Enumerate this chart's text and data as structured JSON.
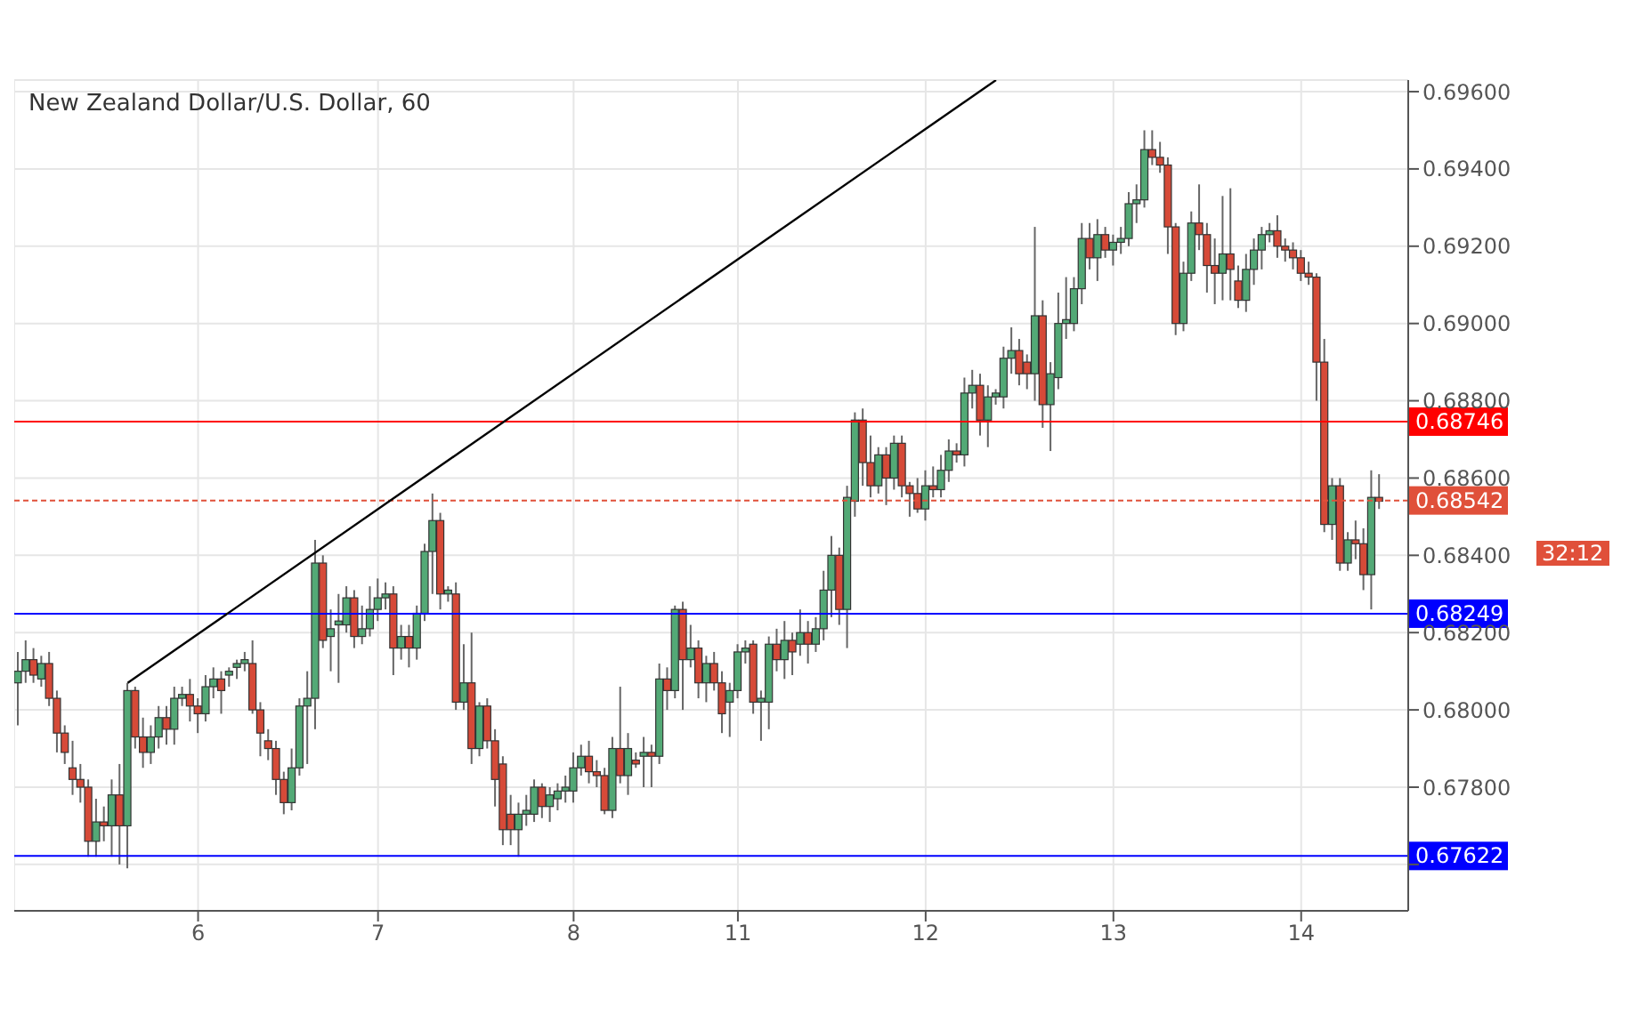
{
  "chart_data": {
    "type": "candlestick",
    "title": "New Zealand Dollar/U.S. Dollar, 60",
    "categories": [
      null,
      null,
      null,
      null,
      null,
      null,
      null,
      null,
      null,
      null,
      null,
      null,
      null,
      null,
      null,
      null,
      null,
      null,
      null,
      null,
      null,
      null,
      null,
      "6",
      null,
      null,
      null,
      null,
      null,
      null,
      null,
      null,
      null,
      null,
      null,
      null,
      null,
      null,
      null,
      null,
      null,
      null,
      null,
      null,
      null,
      null,
      "7",
      null,
      null,
      null,
      null,
      null,
      null,
      null,
      null,
      null,
      null,
      null,
      null,
      null,
      null,
      null,
      null,
      null,
      null,
      null,
      null,
      null,
      null,
      null,
      null,
      "8",
      null,
      null,
      null,
      null,
      null,
      null,
      null,
      null,
      null,
      null,
      null,
      null,
      null,
      null,
      null,
      null,
      null,
      null,
      null,
      null,
      "11",
      null,
      null,
      null,
      null,
      null,
      null,
      null,
      null,
      null,
      null,
      null,
      null,
      null,
      null,
      null,
      null,
      null,
      null,
      null,
      null,
      null,
      null,
      null,
      "12",
      null,
      null,
      null,
      null,
      null,
      null,
      null,
      null,
      null,
      null,
      null,
      null,
      null,
      null,
      null,
      null,
      null,
      null,
      null,
      null,
      null,
      null,
      null,
      "13",
      null,
      null,
      null,
      null,
      null,
      null,
      null,
      null,
      null,
      null,
      null,
      null,
      null,
      null,
      null,
      null,
      null,
      null,
      null,
      null,
      null,
      null,
      null,
      "14",
      null,
      null,
      null,
      null,
      null,
      null,
      null,
      null,
      null,
      null
    ],
    "ohlc": [
      [
        0.6807,
        0.6815,
        0.6796,
        0.681
      ],
      [
        0.681,
        0.6818,
        0.6807,
        0.6813
      ],
      [
        0.6813,
        0.6816,
        0.6807,
        0.6809
      ],
      [
        0.6808,
        0.6814,
        0.6806,
        0.6812
      ],
      [
        0.6812,
        0.6815,
        0.6801,
        0.6803
      ],
      [
        0.6803,
        0.6805,
        0.6789,
        0.6794
      ],
      [
        0.6794,
        0.6796,
        0.6786,
        0.6789
      ],
      [
        0.6785,
        0.6792,
        0.6778,
        0.6782
      ],
      [
        0.6782,
        0.6786,
        0.6776,
        0.678
      ],
      [
        0.678,
        0.6782,
        0.6762,
        0.6766
      ],
      [
        0.6766,
        0.6777,
        0.6762,
        0.6771
      ],
      [
        0.6771,
        0.6775,
        0.6766,
        0.677
      ],
      [
        0.677,
        0.6782,
        0.6762,
        0.6778
      ],
      [
        0.6778,
        0.6786,
        0.676,
        0.677
      ],
      [
        0.677,
        0.6807,
        0.6759,
        0.6805
      ],
      [
        0.6805,
        0.6806,
        0.679,
        0.6793
      ],
      [
        0.6793,
        0.6798,
        0.6785,
        0.6789
      ],
      [
        0.6789,
        0.6796,
        0.6786,
        0.6793
      ],
      [
        0.6793,
        0.6801,
        0.679,
        0.6798
      ],
      [
        0.6798,
        0.6801,
        0.6791,
        0.6795
      ],
      [
        0.6795,
        0.6806,
        0.6791,
        0.6803
      ],
      [
        0.6803,
        0.6806,
        0.6801,
        0.6804
      ],
      [
        0.6804,
        0.6808,
        0.6797,
        0.6801
      ],
      [
        0.6801,
        0.6803,
        0.6794,
        0.6799
      ],
      [
        0.6799,
        0.6809,
        0.6797,
        0.6806
      ],
      [
        0.6806,
        0.6811,
        0.6803,
        0.6808
      ],
      [
        0.6808,
        0.681,
        0.6799,
        0.6805
      ],
      [
        0.6809,
        0.6811,
        0.6806,
        0.681
      ],
      [
        0.6811,
        0.6813,
        0.6808,
        0.6812
      ],
      [
        0.6812,
        0.6815,
        0.681,
        0.6813
      ],
      [
        0.6812,
        0.6818,
        0.6799,
        0.68
      ],
      [
        0.68,
        0.6802,
        0.6788,
        0.6794
      ],
      [
        0.6792,
        0.6795,
        0.6787,
        0.679
      ],
      [
        0.679,
        0.6792,
        0.6778,
        0.6782
      ],
      [
        0.6782,
        0.6784,
        0.6773,
        0.6776
      ],
      [
        0.6776,
        0.679,
        0.6774,
        0.6785
      ],
      [
        0.6785,
        0.6803,
        0.6783,
        0.6801
      ],
      [
        0.6801,
        0.681,
        0.6786,
        0.6803
      ],
      [
        0.6803,
        0.6844,
        0.6795,
        0.6838
      ],
      [
        0.6838,
        0.684,
        0.6816,
        0.6818
      ],
      [
        0.6819,
        0.6826,
        0.681,
        0.6821
      ],
      [
        0.6822,
        0.683,
        0.6807,
        0.6823
      ],
      [
        0.6822,
        0.6832,
        0.682,
        0.6829
      ],
      [
        0.6829,
        0.6831,
        0.6816,
        0.6819
      ],
      [
        0.6819,
        0.6827,
        0.6817,
        0.6821
      ],
      [
        0.6821,
        0.6832,
        0.6819,
        0.6826
      ],
      [
        0.6826,
        0.6834,
        0.6823,
        0.6829
      ],
      [
        0.6829,
        0.6833,
        0.6826,
        0.683
      ],
      [
        0.683,
        0.6832,
        0.6809,
        0.6816
      ],
      [
        0.6816,
        0.6822,
        0.6813,
        0.6819
      ],
      [
        0.6819,
        0.6822,
        0.6811,
        0.6816
      ],
      [
        0.6816,
        0.6827,
        0.6813,
        0.6825
      ],
      [
        0.6825,
        0.6843,
        0.6823,
        0.6841
      ],
      [
        0.6841,
        0.6856,
        0.683,
        0.6849
      ],
      [
        0.6849,
        0.6851,
        0.6826,
        0.683
      ],
      [
        0.683,
        0.6832,
        0.6828,
        0.6831
      ],
      [
        0.683,
        0.6833,
        0.68,
        0.6802
      ],
      [
        0.6802,
        0.6817,
        0.68,
        0.6807
      ],
      [
        0.6807,
        0.682,
        0.6786,
        0.679
      ],
      [
        0.679,
        0.6802,
        0.6788,
        0.6801
      ],
      [
        0.6801,
        0.6803,
        0.679,
        0.6792
      ],
      [
        0.6792,
        0.6795,
        0.6775,
        0.6782
      ],
      [
        0.6786,
        0.6788,
        0.6765,
        0.6769
      ],
      [
        0.6773,
        0.6778,
        0.6765,
        0.6769
      ],
      [
        0.6769,
        0.6776,
        0.6762,
        0.6773
      ],
      [
        0.6773,
        0.6778,
        0.677,
        0.6774
      ],
      [
        0.6773,
        0.6782,
        0.6771,
        0.678
      ],
      [
        0.678,
        0.6781,
        0.6772,
        0.6775
      ],
      [
        0.6775,
        0.678,
        0.6771,
        0.6778
      ],
      [
        0.6777,
        0.6781,
        0.6774,
        0.6779
      ],
      [
        0.6779,
        0.6783,
        0.6776,
        0.678
      ],
      [
        0.6779,
        0.6789,
        0.6776,
        0.6785
      ],
      [
        0.6785,
        0.6791,
        0.6783,
        0.6788
      ],
      [
        0.6788,
        0.6792,
        0.6781,
        0.6784
      ],
      [
        0.6784,
        0.6787,
        0.678,
        0.6783
      ],
      [
        0.6783,
        0.6785,
        0.6773,
        0.6774
      ],
      [
        0.6774,
        0.6793,
        0.6772,
        0.679
      ],
      [
        0.679,
        0.6806,
        0.6781,
        0.6783
      ],
      [
        0.6783,
        0.6794,
        0.6778,
        0.679
      ],
      [
        0.6787,
        0.6789,
        0.6785,
        0.6786
      ],
      [
        0.6788,
        0.6793,
        0.678,
        0.6789
      ],
      [
        0.6789,
        0.6791,
        0.678,
        0.6788
      ],
      [
        0.6788,
        0.6812,
        0.6786,
        0.6808
      ],
      [
        0.6808,
        0.6811,
        0.68,
        0.6805
      ],
      [
        0.6805,
        0.6827,
        0.6803,
        0.6826
      ],
      [
        0.6826,
        0.6828,
        0.68,
        0.6813
      ],
      [
        0.6813,
        0.6822,
        0.6811,
        0.6816
      ],
      [
        0.6816,
        0.6818,
        0.6803,
        0.6807
      ],
      [
        0.6807,
        0.6814,
        0.6802,
        0.6812
      ],
      [
        0.6812,
        0.6815,
        0.6805,
        0.6807
      ],
      [
        0.6807,
        0.681,
        0.6794,
        0.6799
      ],
      [
        0.6802,
        0.6807,
        0.6793,
        0.6805
      ],
      [
        0.6805,
        0.6817,
        0.6803,
        0.6815
      ],
      [
        0.6815,
        0.6818,
        0.6812,
        0.6816
      ],
      [
        0.6817,
        0.6818,
        0.6799,
        0.6802
      ],
      [
        0.6802,
        0.6805,
        0.6792,
        0.6803
      ],
      [
        0.6802,
        0.6819,
        0.6795,
        0.6817
      ],
      [
        0.6817,
        0.6821,
        0.681,
        0.6813
      ],
      [
        0.6813,
        0.6823,
        0.6808,
        0.6818
      ],
      [
        0.6818,
        0.682,
        0.6809,
        0.6815
      ],
      [
        0.6817,
        0.6826,
        0.6814,
        0.682
      ],
      [
        0.682,
        0.6823,
        0.6812,
        0.6817
      ],
      [
        0.6817,
        0.6824,
        0.6815,
        0.6821
      ],
      [
        0.6821,
        0.6836,
        0.6818,
        0.6831
      ],
      [
        0.6831,
        0.6845,
        0.6824,
        0.684
      ],
      [
        0.684,
        0.6842,
        0.6822,
        0.6826
      ],
      [
        0.6826,
        0.6858,
        0.6816,
        0.6855
      ],
      [
        0.6854,
        0.6877,
        0.685,
        0.6875
      ],
      [
        0.6875,
        0.6878,
        0.6858,
        0.6864
      ],
      [
        0.6864,
        0.6871,
        0.6855,
        0.6858
      ],
      [
        0.6858,
        0.6868,
        0.6856,
        0.6866
      ],
      [
        0.6866,
        0.6868,
        0.6853,
        0.686
      ],
      [
        0.686,
        0.6871,
        0.6857,
        0.6869
      ],
      [
        0.6869,
        0.6871,
        0.6855,
        0.6858
      ],
      [
        0.6858,
        0.6859,
        0.685,
        0.6856
      ],
      [
        0.6856,
        0.686,
        0.6851,
        0.6852
      ],
      [
        0.6852,
        0.6862,
        0.6849,
        0.6858
      ],
      [
        0.6858,
        0.6863,
        0.6855,
        0.6857
      ],
      [
        0.6857,
        0.6866,
        0.6855,
        0.6862
      ],
      [
        0.6862,
        0.687,
        0.6859,
        0.6867
      ],
      [
        0.6867,
        0.6869,
        0.6864,
        0.6866
      ],
      [
        0.6866,
        0.6886,
        0.6863,
        0.6882
      ],
      [
        0.6882,
        0.6888,
        0.6878,
        0.6884
      ],
      [
        0.6884,
        0.6887,
        0.6871,
        0.6875
      ],
      [
        0.6875,
        0.6884,
        0.6868,
        0.6881
      ],
      [
        0.6881,
        0.6883,
        0.6879,
        0.6882
      ],
      [
        0.6881,
        0.6894,
        0.6878,
        0.6891
      ],
      [
        0.6891,
        0.6899,
        0.6887,
        0.6893
      ],
      [
        0.6893,
        0.6896,
        0.6884,
        0.6887
      ],
      [
        0.689,
        0.6892,
        0.6883,
        0.6887
      ],
      [
        0.6887,
        0.6925,
        0.688,
        0.6902
      ],
      [
        0.6902,
        0.6906,
        0.6873,
        0.6879
      ],
      [
        0.6879,
        0.689,
        0.6867,
        0.6887
      ],
      [
        0.6886,
        0.6908,
        0.6883,
        0.69
      ],
      [
        0.69,
        0.6912,
        0.6896,
        0.6901
      ],
      [
        0.69,
        0.6912,
        0.6898,
        0.6909
      ],
      [
        0.6909,
        0.6926,
        0.6905,
        0.6922
      ],
      [
        0.6922,
        0.6926,
        0.6914,
        0.6917
      ],
      [
        0.6917,
        0.6927,
        0.6911,
        0.6923
      ],
      [
        0.6923,
        0.6925,
        0.6917,
        0.6919
      ],
      [
        0.6919,
        0.6923,
        0.6915,
        0.6921
      ],
      [
        0.6921,
        0.6925,
        0.6918,
        0.6922
      ],
      [
        0.6922,
        0.6934,
        0.692,
        0.6931
      ],
      [
        0.6931,
        0.6936,
        0.6926,
        0.6932
      ],
      [
        0.6932,
        0.695,
        0.693,
        0.6945
      ],
      [
        0.6945,
        0.695,
        0.6941,
        0.6943
      ],
      [
        0.6943,
        0.6947,
        0.6939,
        0.6941
      ],
      [
        0.6941,
        0.6943,
        0.6918,
        0.6925
      ],
      [
        0.6925,
        0.6926,
        0.6897,
        0.69
      ],
      [
        0.69,
        0.6916,
        0.6898,
        0.6913
      ],
      [
        0.6913,
        0.6929,
        0.6911,
        0.6926
      ],
      [
        0.6926,
        0.6936,
        0.6919,
        0.6923
      ],
      [
        0.6923,
        0.6926,
        0.6908,
        0.6915
      ],
      [
        0.6915,
        0.6922,
        0.6905,
        0.6913
      ],
      [
        0.6913,
        0.6933,
        0.6906,
        0.6918
      ],
      [
        0.6918,
        0.6935,
        0.6906,
        0.6914
      ],
      [
        0.6911,
        0.6915,
        0.6904,
        0.6906
      ],
      [
        0.6906,
        0.6918,
        0.6903,
        0.6914
      ],
      [
        0.6914,
        0.6922,
        0.691,
        0.6919
      ],
      [
        0.6919,
        0.6925,
        0.6914,
        0.6923
      ],
      [
        0.6923,
        0.6926,
        0.6921,
        0.6924
      ],
      [
        0.6924,
        0.6928,
        0.6917,
        0.692
      ],
      [
        0.692,
        0.6922,
        0.6916,
        0.6919
      ],
      [
        0.6919,
        0.6921,
        0.6914,
        0.6917
      ],
      [
        0.6917,
        0.6919,
        0.6911,
        0.6913
      ],
      [
        0.6913,
        0.6916,
        0.691,
        0.6912
      ],
      [
        0.6912,
        0.6913,
        0.688,
        0.689
      ],
      [
        0.689,
        0.6896,
        0.6846,
        0.6848
      ],
      [
        0.6848,
        0.686,
        0.6844,
        0.6858
      ],
      [
        0.6858,
        0.686,
        0.6836,
        0.6838
      ],
      [
        0.6838,
        0.6846,
        0.6836,
        0.6844
      ],
      [
        0.6844,
        0.6849,
        0.6839,
        0.6843
      ],
      [
        0.6843,
        0.6847,
        0.6831,
        0.6835
      ],
      [
        0.6835,
        0.6862,
        0.6826,
        0.6855
      ],
      [
        0.6855,
        0.6861,
        0.6852,
        0.6854
      ]
    ],
    "series": [
      {
        "type": "line",
        "values": [
          null,
          null,
          null,
          null,
          null,
          null,
          null,
          null,
          null,
          null,
          null,
          null,
          null,
          null,
          0.6807,
          null,
          null,
          null,
          null,
          null,
          null,
          null,
          null,
          null,
          null,
          null,
          null,
          null,
          null,
          null,
          null,
          null,
          null,
          null,
          null,
          null,
          null,
          null,
          null,
          null,
          null,
          null,
          null,
          null,
          null,
          null,
          null,
          null,
          null,
          null,
          null,
          null,
          null,
          null,
          null,
          null,
          null,
          null,
          null,
          null,
          null,
          null,
          null,
          null,
          null,
          null,
          null,
          null,
          null,
          null,
          null,
          null,
          null,
          null,
          null,
          null,
          null,
          null,
          null,
          null,
          null,
          null,
          null,
          null,
          null,
          null,
          null,
          null,
          null,
          null,
          null,
          null,
          null,
          null,
          null,
          null,
          null,
          null,
          null,
          null,
          null,
          null,
          null,
          null,
          null,
          null,
          null,
          null,
          null,
          null,
          null,
          null,
          null,
          null,
          null,
          null,
          null,
          null,
          null,
          null,
          null,
          null,
          null,
          null,
          null,
          0.6963,
          null,
          null,
          null,
          null,
          null,
          null,
          null,
          null,
          null,
          null,
          null,
          null,
          null,
          null,
          null,
          null,
          null,
          null,
          null,
          null,
          null,
          null,
          null,
          null,
          null,
          null,
          null,
          null,
          null,
          null,
          null,
          null,
          null,
          null,
          null,
          null,
          null,
          null,
          null,
          null,
          null,
          null,
          null,
          null,
          null,
          null,
          null,
          null,
          null
        ],
        "color": "#000000"
      }
    ],
    "ylim": [
      0.6748,
      0.6963
    ],
    "yticks": [
      {
        "value": 0.676,
        "label": null
      },
      {
        "value": 0.678,
        "label": "0.67800"
      },
      {
        "value": 0.68,
        "label": "0.68000"
      },
      {
        "value": 0.682,
        "label": "0.68200"
      },
      {
        "value": 0.684,
        "label": "0.68400"
      },
      {
        "value": 0.686,
        "label": "0.68600"
      },
      {
        "value": 0.688,
        "label": "0.68800"
      },
      {
        "value": 0.69,
        "label": "0.69000"
      },
      {
        "value": 0.692,
        "label": "0.69200"
      },
      {
        "value": 0.694,
        "label": "0.69400"
      },
      {
        "value": 0.696,
        "label": "0.69600"
      }
    ],
    "ref_lines": [
      {
        "axis": "y",
        "value": 0.68746,
        "label": "0.68746",
        "color": "#ff0000"
      },
      {
        "axis": "y",
        "value": 0.68542,
        "label": "0.68542",
        "color": "#e0503a",
        "line_style": "dashed"
      },
      {
        "axis": "y",
        "value": 0.68249,
        "label": "0.68249",
        "color": "#0000ff"
      },
      {
        "axis": "y",
        "value": 0.67622,
        "label": "0.67622",
        "color": "#0000ff"
      }
    ],
    "annotations": [
      "32:12"
    ],
    "grid": true
  }
}
